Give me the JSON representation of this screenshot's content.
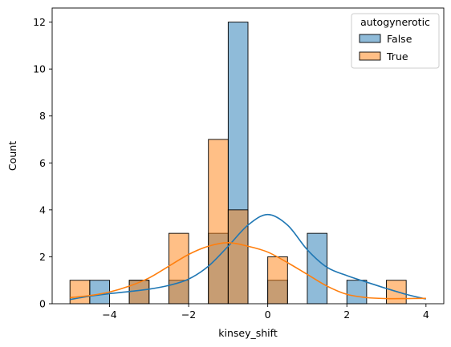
{
  "chart_data": {
    "type": "bar",
    "subtype": "stacked-histogram-with-kde",
    "title": "",
    "xlabel": "kinsey_shift",
    "ylabel": "Count",
    "xlim": [
      -5.45,
      4.45
    ],
    "ylim": [
      0,
      12.6
    ],
    "xticks": [
      -4,
      -2,
      0,
      2,
      4
    ],
    "xtick_labels": [
      "−4",
      "−2",
      "0",
      "2",
      "4"
    ],
    "yticks": [
      0,
      2,
      4,
      6,
      8,
      10,
      12
    ],
    "ytick_labels": [
      "0",
      "2",
      "4",
      "6",
      "8",
      "10",
      "12"
    ],
    "grid": false,
    "legend": {
      "title": "autogynerotic",
      "placement": "top-right"
    },
    "bin_edges": [
      -5,
      -4.5,
      -4,
      -3.5,
      -3,
      -2.5,
      -2,
      -1.5,
      -1,
      -0.5,
      0,
      0.5,
      1,
      1.5,
      2,
      2.5,
      3,
      3.5,
      4
    ],
    "series": [
      {
        "name": "False",
        "color": "#1f77b4",
        "counts": [
          0,
          1,
          0,
          1,
          0,
          1,
          0,
          3,
          12,
          0,
          1,
          0,
          3,
          0,
          1,
          0,
          0,
          0
        ],
        "kde_x": [
          -5,
          -4.5,
          -4,
          -3.5,
          -3,
          -2.5,
          -2,
          -1.5,
          -1,
          -0.5,
          0,
          0.5,
          1,
          1.5,
          2,
          2.5,
          3,
          3.5,
          4
        ],
        "kde_y": [
          0.18,
          0.32,
          0.43,
          0.52,
          0.62,
          0.78,
          1.05,
          1.6,
          2.45,
          3.35,
          3.8,
          3.35,
          2.3,
          1.55,
          1.2,
          0.92,
          0.65,
          0.4,
          0.2
        ]
      },
      {
        "name": "True",
        "color": "#ff7f0e",
        "counts": [
          1,
          0,
          0,
          1,
          0,
          3,
          0,
          7,
          4,
          0,
          2,
          0,
          0,
          0,
          0,
          0,
          1,
          0
        ],
        "kde_x": [
          -5,
          -4.5,
          -4,
          -3.5,
          -3,
          -2.5,
          -2,
          -1.5,
          -1,
          -0.5,
          0,
          0.5,
          1,
          1.5,
          2,
          2.5,
          3,
          3.5,
          4
        ],
        "kde_y": [
          0.26,
          0.35,
          0.5,
          0.75,
          1.1,
          1.6,
          2.1,
          2.45,
          2.6,
          2.45,
          2.2,
          1.75,
          1.25,
          0.75,
          0.4,
          0.26,
          0.22,
          0.22,
          0.23
        ]
      }
    ]
  }
}
